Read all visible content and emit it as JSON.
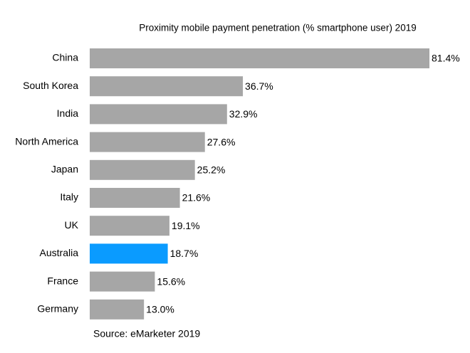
{
  "chart_data": {
    "type": "hbar",
    "title": "Proximity mobile payment penetration (% smartphone user) 2019",
    "categories": [
      "China",
      "South Korea",
      "India",
      "North America",
      "Japan",
      "Italy",
      "UK",
      "Australia",
      "France",
      "Germany"
    ],
    "values": [
      81.4,
      36.7,
      32.9,
      27.6,
      25.2,
      21.6,
      19.1,
      18.7,
      15.6,
      13.0
    ],
    "value_labels": [
      "81.4%",
      "36.7%",
      "32.9%",
      "27.6%",
      "25.2%",
      "21.6%",
      "19.1%",
      "18.7%",
      "15.6%",
      "13.0%"
    ],
    "colors": [
      "#a6a6a6",
      "#a6a6a6",
      "#a6a6a6",
      "#a6a6a6",
      "#a6a6a6",
      "#a6a6a6",
      "#a6a6a6",
      "#0a9bff",
      "#a6a6a6",
      "#a6a6a6"
    ],
    "source": "Source: eMarketer 2019"
  }
}
